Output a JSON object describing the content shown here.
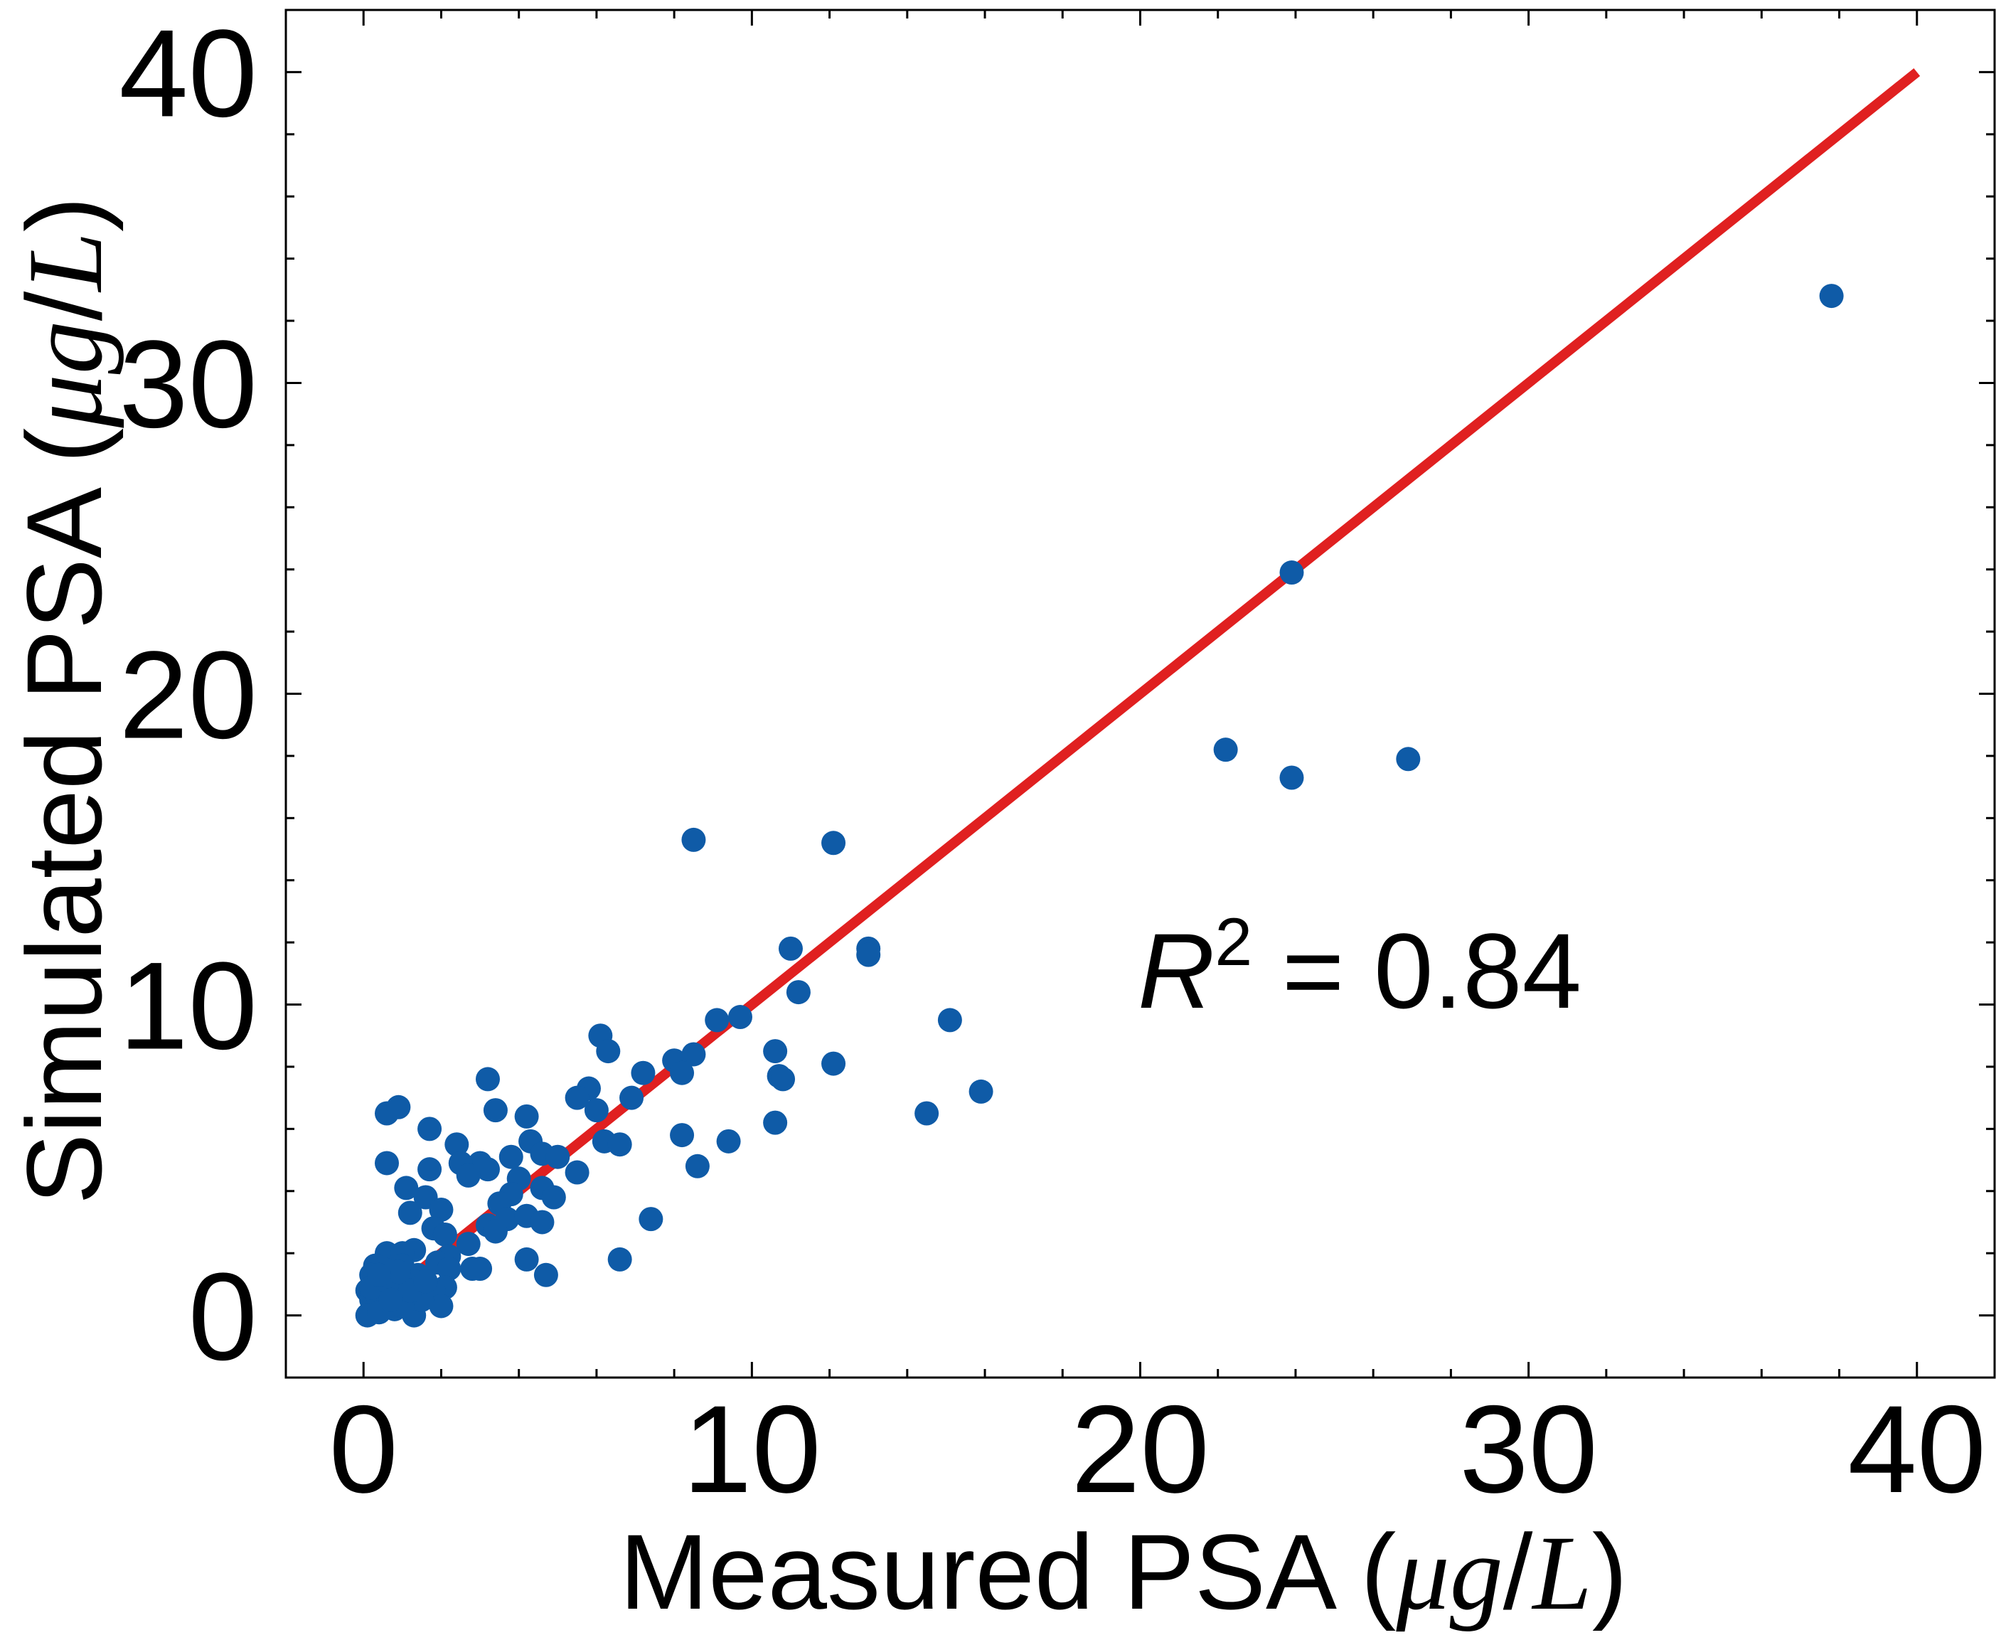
{
  "chart_data": {
    "type": "scatter",
    "xlabel_prefix": "Measured PSA (",
    "ylabel_prefix": "Simulated PSA (",
    "unit_mu": "μ",
    "unit_g": "g",
    "unit_slash": "/",
    "unit_L": "L",
    "unit_close": ")",
    "xlim": [
      -2,
      42
    ],
    "ylim": [
      -2,
      42
    ],
    "xticks": [
      0,
      10,
      20,
      30,
      40
    ],
    "yticks": [
      0,
      10,
      20,
      30,
      40
    ],
    "grid": false,
    "annotation": {
      "r": "R",
      "sup": "2",
      "text": " = 0.84"
    },
    "line": {
      "x": [
        0,
        40
      ],
      "y": [
        0,
        40
      ],
      "color": "#e02020"
    },
    "marker_color": "#0f5ba7",
    "points": [
      [
        37.8,
        32.8
      ],
      [
        23.9,
        23.9
      ],
      [
        22.2,
        18.2
      ],
      [
        23.9,
        17.3
      ],
      [
        26.9,
        17.9
      ],
      [
        8.5,
        15.3
      ],
      [
        12.1,
        15.2
      ],
      [
        11.0,
        11.8
      ],
      [
        13.0,
        11.8
      ],
      [
        13.0,
        11.6
      ],
      [
        11.2,
        10.4
      ],
      [
        15.1,
        9.5
      ],
      [
        9.1,
        9.5
      ],
      [
        9.7,
        9.6
      ],
      [
        6.1,
        9.0
      ],
      [
        6.3,
        8.5
      ],
      [
        8.5,
        8.4
      ],
      [
        10.6,
        8.5
      ],
      [
        12.1,
        8.1
      ],
      [
        10.7,
        7.7
      ],
      [
        10.8,
        7.6
      ],
      [
        8.0,
        8.2
      ],
      [
        8.2,
        7.8
      ],
      [
        7.2,
        7.8
      ],
      [
        15.9,
        7.2
      ],
      [
        5.8,
        7.3
      ],
      [
        5.5,
        7.0
      ],
      [
        6.9,
        7.0
      ],
      [
        14.5,
        6.5
      ],
      [
        6.0,
        6.6
      ],
      [
        10.6,
        6.2
      ],
      [
        8.2,
        5.8
      ],
      [
        9.4,
        5.6
      ],
      [
        6.2,
        5.6
      ],
      [
        6.6,
        5.5
      ],
      [
        8.6,
        4.8
      ],
      [
        3.2,
        7.6
      ],
      [
        3.4,
        6.6
      ],
      [
        4.2,
        6.4
      ],
      [
        0.6,
        6.5
      ],
      [
        0.9,
        6.7
      ],
      [
        1.7,
        6.0
      ],
      [
        2.4,
        5.5
      ],
      [
        4.3,
        5.6
      ],
      [
        3.8,
        5.1
      ],
      [
        4.6,
        5.2
      ],
      [
        5.0,
        5.1
      ],
      [
        3.0,
        4.9
      ],
      [
        2.5,
        4.9
      ],
      [
        0.6,
        4.9
      ],
      [
        1.7,
        4.7
      ],
      [
        3.2,
        4.7
      ],
      [
        5.5,
        4.6
      ],
      [
        2.7,
        4.5
      ],
      [
        4.0,
        4.4
      ],
      [
        4.6,
        4.1
      ],
      [
        1.1,
        4.1
      ],
      [
        3.8,
        3.9
      ],
      [
        4.9,
        3.8
      ],
      [
        1.6,
        3.8
      ],
      [
        3.5,
        3.6
      ],
      [
        2.0,
        3.4
      ],
      [
        1.2,
        3.3
      ],
      [
        3.7,
        3.1
      ],
      [
        4.2,
        3.2
      ],
      [
        7.4,
        3.1
      ],
      [
        4.6,
        3.0
      ],
      [
        3.2,
        2.9
      ],
      [
        1.8,
        2.8
      ],
      [
        2.1,
        2.6
      ],
      [
        3.4,
        2.7
      ],
      [
        2.7,
        2.3
      ],
      [
        1.3,
        2.1
      ],
      [
        0.6,
        2.0
      ],
      [
        1.0,
        2.0
      ],
      [
        2.2,
        1.9
      ],
      [
        4.2,
        1.8
      ],
      [
        6.6,
        1.8
      ],
      [
        1.9,
        1.7
      ],
      [
        2.8,
        1.5
      ],
      [
        3.0,
        1.5
      ],
      [
        2.2,
        1.5
      ],
      [
        1.0,
        1.6
      ],
      [
        0.3,
        1.6
      ],
      [
        0.5,
        1.5
      ],
      [
        4.7,
        1.3
      ],
      [
        1.4,
        1.3
      ],
      [
        0.2,
        1.3
      ],
      [
        0.8,
        1.2
      ],
      [
        1.3,
        1.1
      ],
      [
        0.4,
        1.0
      ],
      [
        2.1,
        0.9
      ],
      [
        0.7,
        0.9
      ],
      [
        1.8,
        0.8
      ],
      [
        0.1,
        0.8
      ],
      [
        0.5,
        0.7
      ],
      [
        0.9,
        0.6
      ],
      [
        1.1,
        0.6
      ],
      [
        0.2,
        0.5
      ],
      [
        2.0,
        0.3
      ],
      [
        0.6,
        0.4
      ],
      [
        0.3,
        0.2
      ],
      [
        1.3,
        0.0
      ],
      [
        0.1,
        0.0
      ],
      [
        0.4,
        0.1
      ],
      [
        0.8,
        0.2
      ],
      [
        1.5,
        0.5
      ],
      [
        1.0,
        0.3
      ],
      [
        0.2,
        0.9
      ],
      [
        0.6,
        1.1
      ],
      [
        1.2,
        0.8
      ],
      [
        0.9,
        1.4
      ],
      [
        1.6,
        1.1
      ],
      [
        0.4,
        1.3
      ],
      [
        0.7,
        0.5
      ]
    ]
  }
}
